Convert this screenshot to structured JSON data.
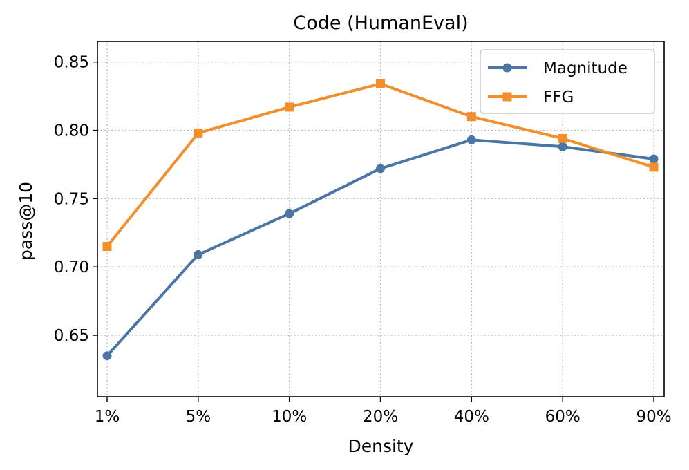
{
  "chart_data": {
    "type": "line",
    "title": "Code (HumanEval)",
    "xlabel": "Density",
    "ylabel": "pass@10",
    "categories": [
      "1%",
      "5%",
      "10%",
      "20%",
      "40%",
      "60%",
      "90%"
    ],
    "ylim": [
      0.605,
      0.865
    ],
    "yticks": [
      0.65,
      0.7,
      0.75,
      0.8,
      0.85
    ],
    "ytick_labels": [
      "0.65",
      "0.70",
      "0.75",
      "0.80",
      "0.85"
    ],
    "grid": true,
    "legend_position": "top-right",
    "series": [
      {
        "name": "Magnitude",
        "color": "#4a75a5",
        "marker": "circle",
        "values": [
          0.635,
          0.709,
          0.739,
          0.772,
          0.793,
          0.788,
          0.779
        ]
      },
      {
        "name": "FFG",
        "color": "#f28e2b",
        "marker": "square",
        "values": [
          0.715,
          0.798,
          0.817,
          0.834,
          0.81,
          0.794,
          0.773
        ]
      }
    ]
  }
}
